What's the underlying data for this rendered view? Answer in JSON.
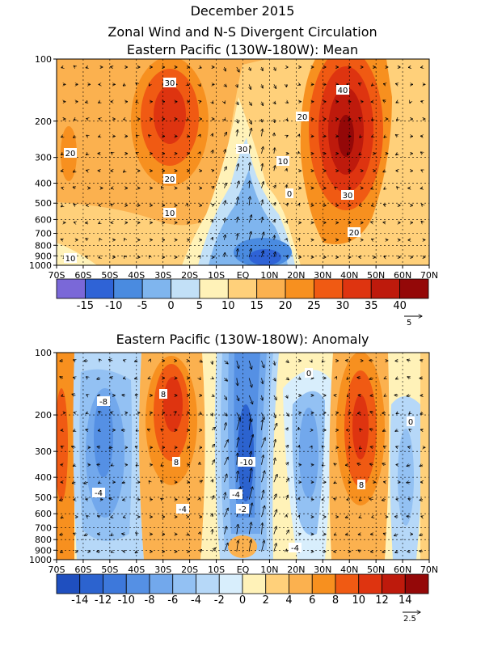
{
  "title": "December 2015",
  "subtitle": "Zonal Wind and N-S Divergent Circulation",
  "colors": {
    "axis": "#000000",
    "arrow": "#000000"
  },
  "chart_data": [
    {
      "type": "heatmap",
      "title": "Eastern Pacific (130W-180W): Mean",
      "x_ticks": [
        "70S",
        "60S",
        "50S",
        "40S",
        "30S",
        "20S",
        "10S",
        "EQ",
        "10N",
        "20N",
        "30N",
        "40N",
        "50N",
        "60N",
        "70N"
      ],
      "y_ticks": [
        "100",
        "200",
        "300",
        "400",
        "500",
        "600",
        "700",
        "800",
        "900",
        "1000"
      ],
      "y_scale": "log-pressure",
      "colorbar": {
        "labels": [
          "-15",
          "-10",
          "-5",
          "0",
          "5",
          "10",
          "15",
          "20",
          "25",
          "30",
          "35",
          "40"
        ],
        "colors": [
          "#7a68d8",
          "#2f63d6",
          "#4a8be0",
          "#7fb5ee",
          "#c2e0f7",
          "#fff2b8",
          "#ffd07a",
          "#fbb14f",
          "#f7901f",
          "#f05a13",
          "#de3410",
          "#be1a0c",
          "#940808"
        ]
      },
      "reference_vector": "5",
      "contour_labels": [
        "30",
        "20",
        "20",
        "10",
        "10",
        "40",
        "20",
        "10",
        "0",
        "30",
        "20",
        "30"
      ]
    },
    {
      "type": "heatmap",
      "title": "Eastern Pacific (130W-180W): Anomaly",
      "x_ticks": [
        "70S",
        "60S",
        "50S",
        "40S",
        "30S",
        "20S",
        "10S",
        "EQ",
        "10N",
        "20N",
        "30N",
        "40N",
        "50N",
        "60N",
        "70N"
      ],
      "y_ticks": [
        "100",
        "200",
        "300",
        "400",
        "500",
        "600",
        "700",
        "800",
        "900",
        "1000"
      ],
      "y_scale": "log-pressure",
      "colorbar": {
        "labels": [
          "-14",
          "-12",
          "-10",
          "-8",
          "-6",
          "-4",
          "-2",
          "0",
          "2",
          "4",
          "6",
          "8",
          "10",
          "12",
          "14"
        ],
        "colors": [
          "#1f4fbf",
          "#2c63cf",
          "#3d78db",
          "#5590e4",
          "#72a8ec",
          "#93c1f3",
          "#b6d8f8",
          "#d8eefc",
          "#fff2b8",
          "#ffd07a",
          "#fbb14f",
          "#f7901f",
          "#f05a13",
          "#de3410",
          "#be1a0c",
          "#940808"
        ]
      },
      "reference_vector": "2.5",
      "contour_labels": [
        "-8",
        "8",
        "8",
        "-4",
        "-4",
        "0",
        "0",
        "-2",
        "-4",
        "-10",
        "8",
        "-4"
      ]
    }
  ]
}
